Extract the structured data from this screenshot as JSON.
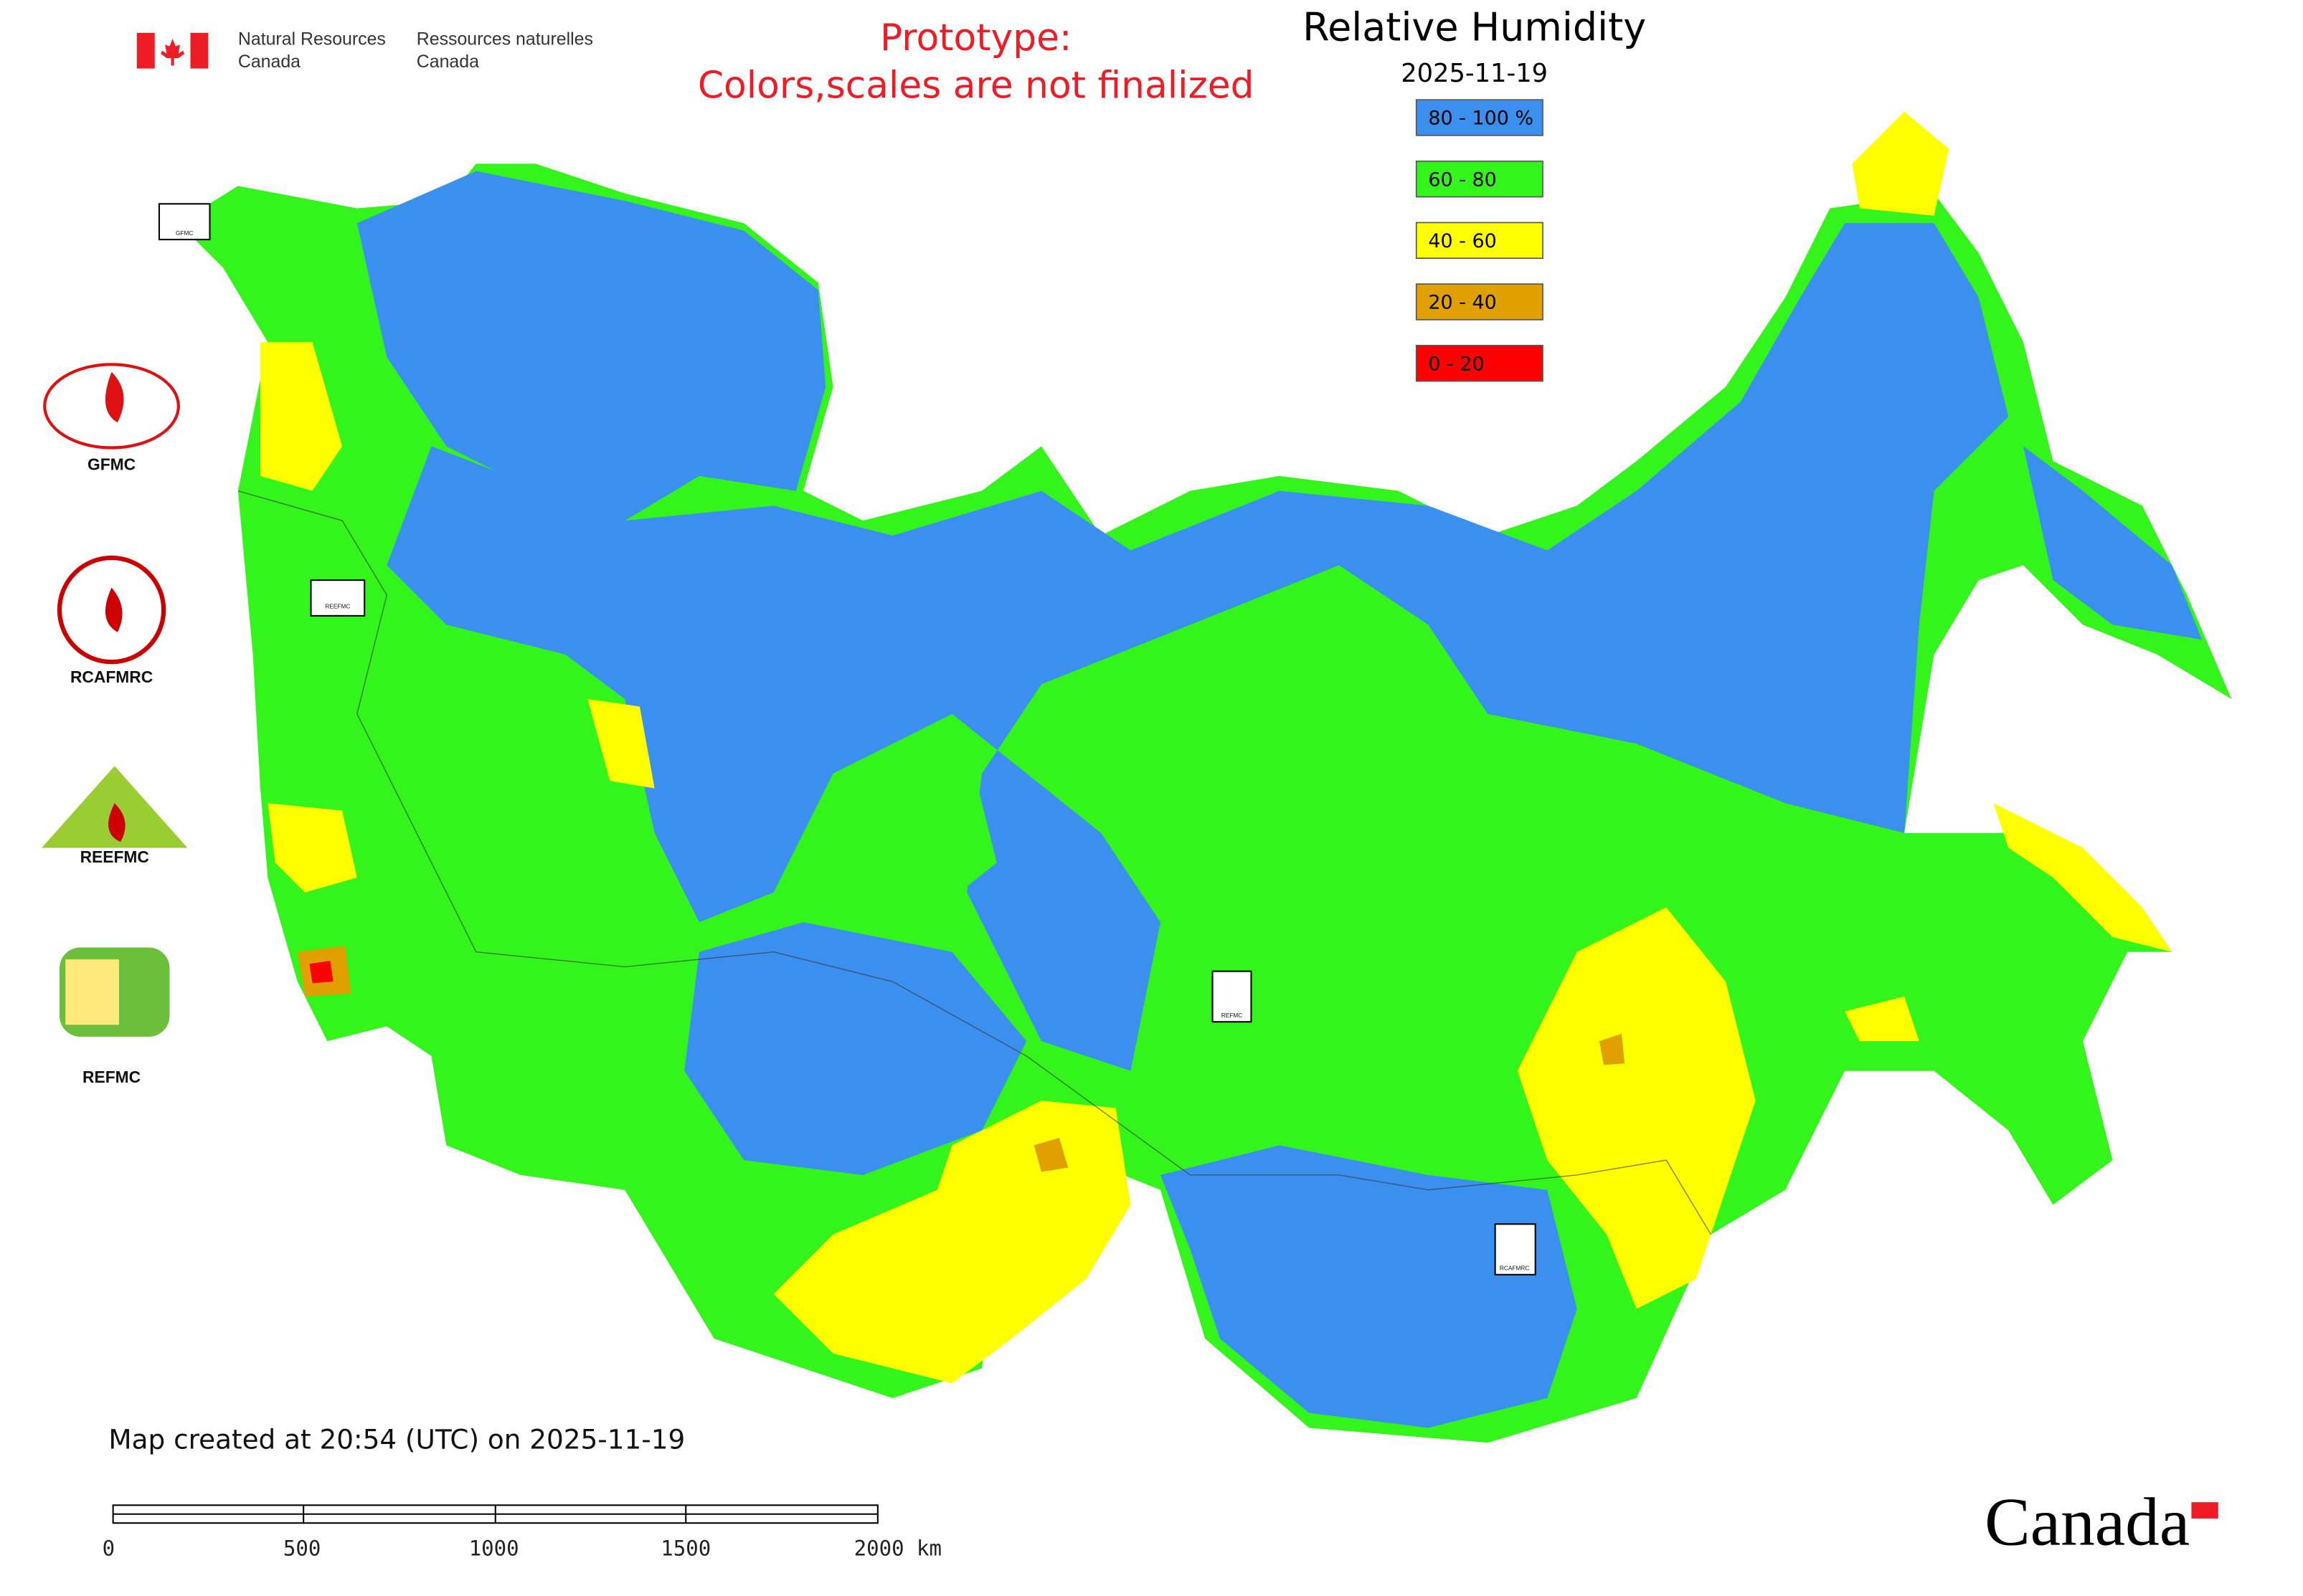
{
  "header": {
    "agency_en": [
      "Natural Resources",
      "Canada"
    ],
    "agency_fr": [
      "Ressources naturelles",
      "Canada"
    ]
  },
  "notice": [
    "Prototype:",
    "Colors,scales are not finalized"
  ],
  "title": "Relative Humidity",
  "date": "2025-11-19",
  "legend": [
    {
      "label": "80 - 100 %",
      "color": "#3b8fef"
    },
    {
      "label": "60 - 80",
      "color": "#33f51c"
    },
    {
      "label": "40 - 60",
      "color": "#ffff00"
    },
    {
      "label": "20 - 40",
      "color": "#e0a000"
    },
    {
      "label": "0 - 20",
      "color": "#ff0000"
    }
  ],
  "logos": [
    "GFMC",
    "RCAFMRC",
    "REEFMC",
    "REFMC"
  ],
  "map_markers": [
    "GFMC",
    "REEFMC",
    "REFMC",
    "RCAFMRC"
  ],
  "footer": "Map created at 20:54 (UTC) on 2025-11-19",
  "scale_bar": [
    "0",
    "500",
    "1000",
    "1500",
    "2000 km"
  ],
  "wordmark": "Canada"
}
